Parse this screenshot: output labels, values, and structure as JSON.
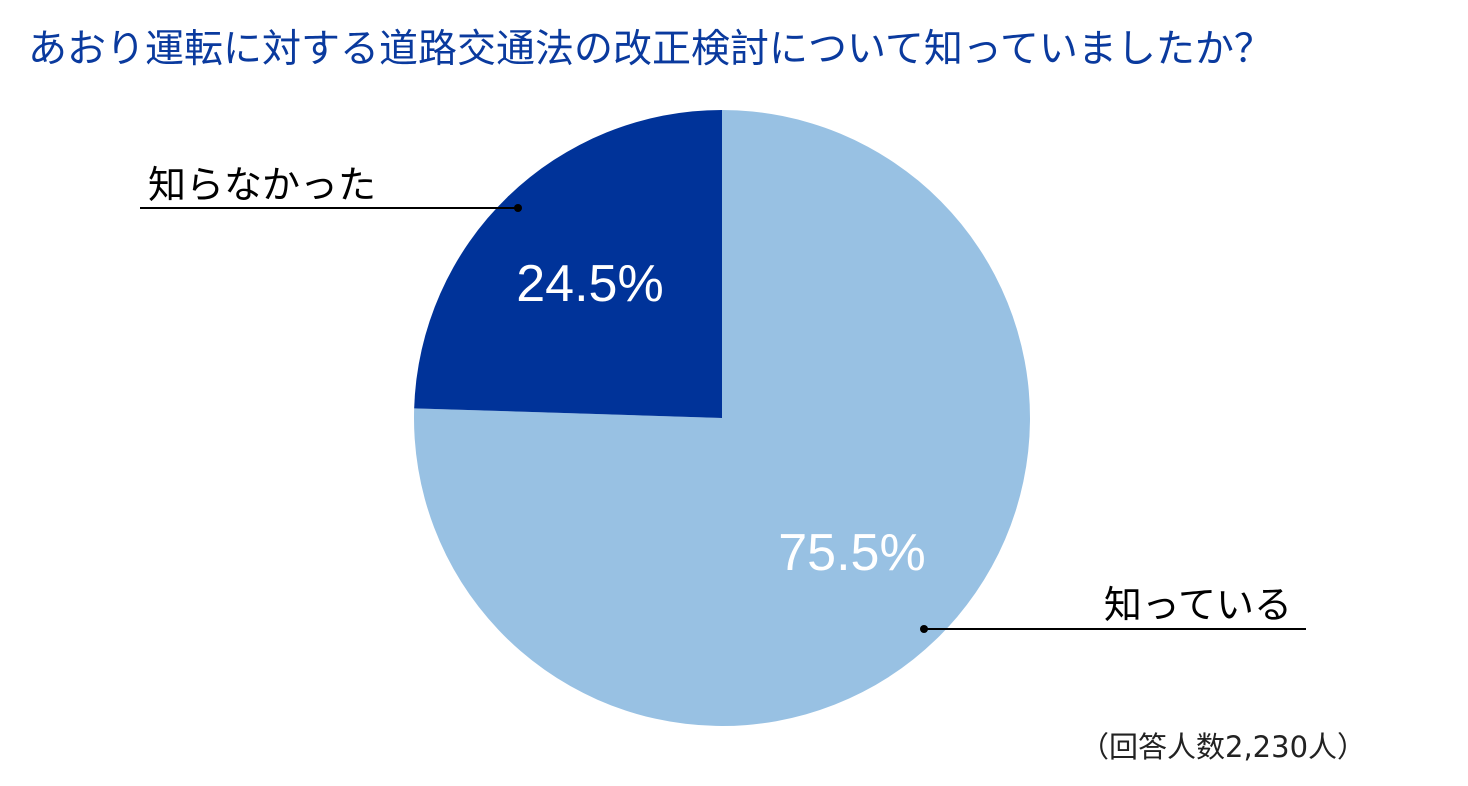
{
  "colors": {
    "title": "#0a3a9e",
    "slice_know": "#98c1e3",
    "slice_not_know": "#003399",
    "data_label": "#ffffff",
    "leader_line": "#000000"
  },
  "chart_data": {
    "type": "pie",
    "title": "あおり運転に対する道路交通法の改正検討について知っていましたか？",
    "start_angle_deg": 0,
    "direction": "clockwise",
    "slices": [
      {
        "label": "知っている",
        "value": 75.5,
        "display": "75.5%",
        "color": "#98c1e3"
      },
      {
        "label": "知らなかった",
        "value": 24.5,
        "display": "24.5%",
        "color": "#003399"
      }
    ],
    "note": "（回答人数2,230人）"
  }
}
